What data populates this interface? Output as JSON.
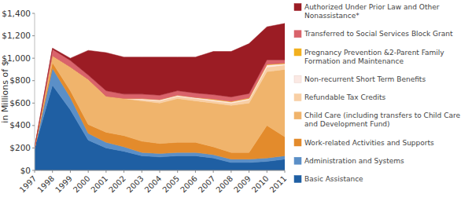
{
  "chart_data": {
    "type": "area",
    "stacked": true,
    "grid": false,
    "legend": "right",
    "y_label": "in Millions of $",
    "x": [
      1997,
      1998,
      1999,
      2000,
      2001,
      2002,
      2003,
      2004,
      2005,
      2006,
      2007,
      2008,
      2009,
      2010,
      2011
    ],
    "xlim": [
      1997,
      2011
    ],
    "xticks": [
      1997,
      1998,
      1999,
      2000,
      2001,
      2002,
      2003,
      2004,
      2005,
      2006,
      2007,
      2008,
      2009,
      2010,
      2011
    ],
    "ylim": [
      0,
      1400
    ],
    "yticks": [
      {
        "value": 0,
        "label": "$0"
      },
      {
        "value": 200,
        "label": "$200"
      },
      {
        "value": 400,
        "label": "$400"
      },
      {
        "value": 600,
        "label": "$600"
      },
      {
        "value": 800,
        "label": "$800"
      },
      {
        "value": 1000,
        "label": "$1,000"
      },
      {
        "value": 1200,
        "label": "$1,200"
      },
      {
        "value": 1400,
        "label": "$1,400"
      }
    ],
    "series": [
      {
        "name": "Basic Assistance",
        "color": "#1f5fa3",
        "values": [
          200,
          760,
          540,
          270,
          200,
          170,
          130,
          120,
          130,
          130,
          110,
          70,
          70,
          80,
          100
        ]
      },
      {
        "name": "Administration and Systems",
        "color": "#5b8fc7",
        "values": [
          0,
          150,
          110,
          60,
          50,
          40,
          30,
          30,
          30,
          30,
          30,
          30,
          30,
          30,
          30
        ]
      },
      {
        "name": "Work-related Activities and Supports",
        "color": "#e38b2c",
        "values": [
          0,
          50,
          60,
          80,
          90,
          100,
          100,
          90,
          90,
          90,
          70,
          60,
          60,
          290,
          170
        ]
      },
      {
        "name": "Child Care (including transfers to Child Care and Development Fund)",
        "color": "#f0b46c",
        "values": [
          0,
          60,
          210,
          400,
          320,
          330,
          360,
          360,
          390,
          370,
          390,
          420,
          440,
          480,
          600
        ]
      },
      {
        "name": "Refundable Tax Credits",
        "color": "#f8cfa5",
        "values": [
          0,
          0,
          0,
          0,
          0,
          0,
          10,
          20,
          20,
          20,
          20,
          20,
          30,
          40,
          40
        ]
      },
      {
        "name": "Non-recurrent Short Term Benefits",
        "color": "#fbe9e4",
        "values": [
          0,
          0,
          0,
          0,
          0,
          0,
          10,
          10,
          10,
          10,
          10,
          10,
          10,
          20,
          10
        ]
      },
      {
        "name": "Pregnancy Prevention &2-Parent Family Formation and Maintenance",
        "color": "#f2b01e",
        "values": [
          0,
          0,
          0,
          0,
          0,
          0,
          0,
          0,
          0,
          0,
          5,
          5,
          5,
          5,
          5
        ]
      },
      {
        "name": "Transferred to Social Services Block Grant",
        "color": "#d9636b",
        "values": [
          0,
          60,
          60,
          40,
          50,
          40,
          40,
          40,
          40,
          40,
          40,
          40,
          40,
          40,
          30
        ]
      },
      {
        "name": "Authorized Under Prior Law and Other Nonassistance*",
        "color": "#9b1c24",
        "values": [
          0,
          10,
          20,
          220,
          340,
          330,
          330,
          340,
          300,
          320,
          385,
          405,
          445,
          295,
          325
        ]
      }
    ]
  }
}
